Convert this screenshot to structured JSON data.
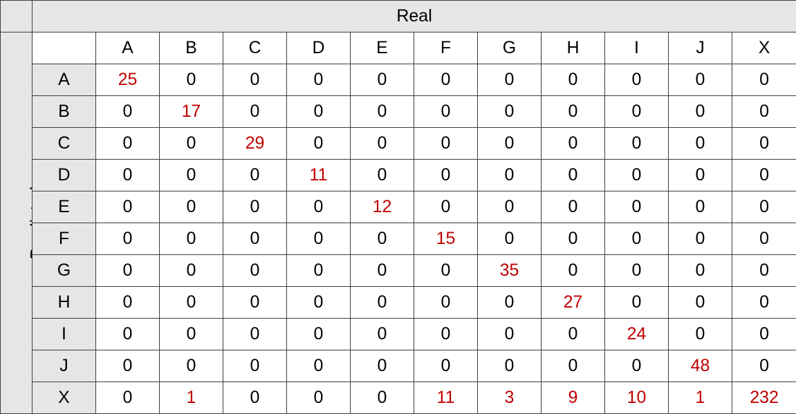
{
  "chart_data": {
    "type": "table",
    "col_axis_label": "Real",
    "row_axis_label": "Predicted",
    "columns": [
      "A",
      "B",
      "C",
      "D",
      "E",
      "F",
      "G",
      "H",
      "I",
      "J",
      "X"
    ],
    "rows": [
      "A",
      "B",
      "C",
      "D",
      "E",
      "F",
      "G",
      "H",
      "I",
      "J",
      "X"
    ],
    "values": [
      [
        25,
        0,
        0,
        0,
        0,
        0,
        0,
        0,
        0,
        0,
        0
      ],
      [
        0,
        17,
        0,
        0,
        0,
        0,
        0,
        0,
        0,
        0,
        0
      ],
      [
        0,
        0,
        29,
        0,
        0,
        0,
        0,
        0,
        0,
        0,
        0
      ],
      [
        0,
        0,
        0,
        11,
        0,
        0,
        0,
        0,
        0,
        0,
        0
      ],
      [
        0,
        0,
        0,
        0,
        12,
        0,
        0,
        0,
        0,
        0,
        0
      ],
      [
        0,
        0,
        0,
        0,
        0,
        15,
        0,
        0,
        0,
        0,
        0
      ],
      [
        0,
        0,
        0,
        0,
        0,
        0,
        35,
        0,
        0,
        0,
        0
      ],
      [
        0,
        0,
        0,
        0,
        0,
        0,
        0,
        27,
        0,
        0,
        0
      ],
      [
        0,
        0,
        0,
        0,
        0,
        0,
        0,
        0,
        24,
        0,
        0
      ],
      [
        0,
        0,
        0,
        0,
        0,
        0,
        0,
        0,
        0,
        48,
        0
      ],
      [
        0,
        1,
        0,
        0,
        0,
        11,
        3,
        9,
        10,
        1,
        232
      ]
    ],
    "highlight_color": "#c00000",
    "text_color": "#000000",
    "header_fill": "#e6e6e6",
    "highlight_rule": "nonzero values shown in red"
  }
}
